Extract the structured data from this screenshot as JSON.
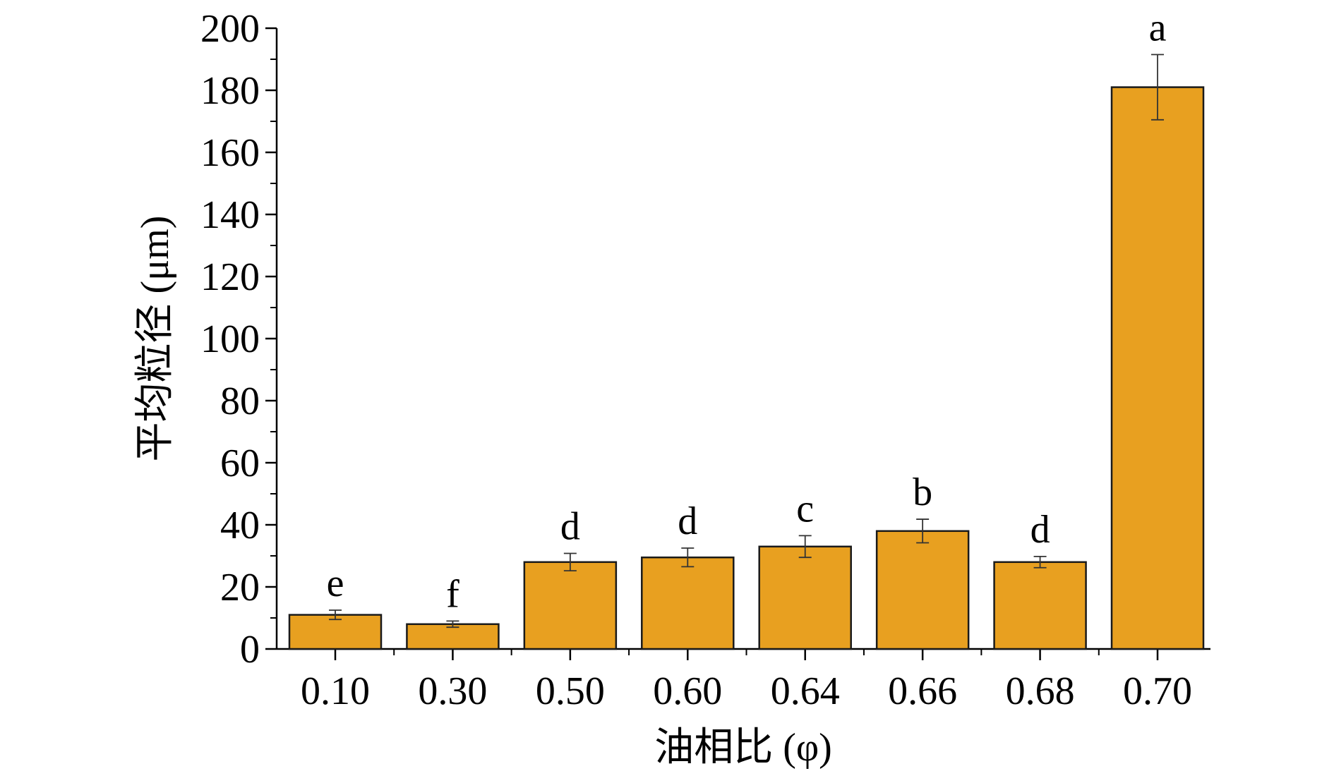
{
  "chart_data": {
    "type": "bar",
    "categories": [
      "0.10",
      "0.30",
      "0.50",
      "0.60",
      "0.64",
      "0.66",
      "0.68",
      "0.70"
    ],
    "values": [
      11,
      8,
      28,
      29.5,
      33,
      38,
      28,
      181
    ],
    "errors": [
      1.5,
      1,
      2.8,
      3,
      3.5,
      3.8,
      1.8,
      10.5
    ],
    "significance_labels": [
      "e",
      "f",
      "d",
      "d",
      "c",
      "b",
      "d",
      "a"
    ],
    "xlabel": "油相比 (φ)",
    "ylabel": "平均粒径 (μm)",
    "ylim": [
      0,
      200
    ],
    "yticks": [
      "0",
      "20",
      "40",
      "60",
      "80",
      "100",
      "120",
      "140",
      "160",
      "180",
      "200"
    ],
    "bar_color": "#E8A020",
    "bar_edge_color": "#1a1a1a",
    "error_bar_color": "#333333",
    "grid": false,
    "legend": "none"
  }
}
